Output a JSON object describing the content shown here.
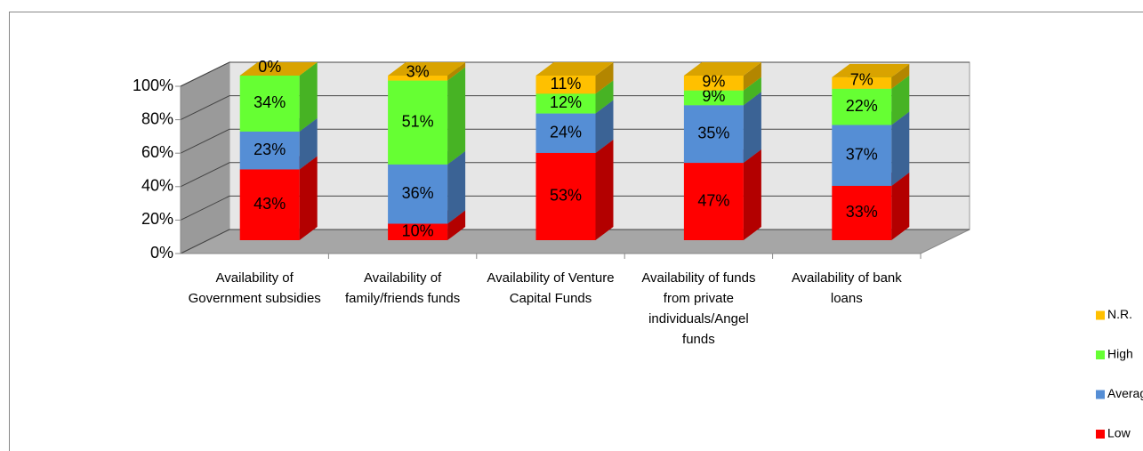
{
  "chart_data": {
    "type": "bar3d_stacked",
    "categories": [
      "Availability of Government subsidies",
      "Availability of family/friends funds",
      "Availability of Venture Capital Funds",
      "Availability of funds from private individuals/Angel funds",
      "Availability of bank loans"
    ],
    "series": [
      {
        "name": "Low",
        "color": "#ff0000",
        "values": [
          43,
          10,
          53,
          47,
          33
        ],
        "value_labels": [
          "43%",
          "10%",
          "53%",
          "47%",
          "33%"
        ]
      },
      {
        "name": "Average",
        "color": "#558ed5",
        "values": [
          23,
          36,
          24,
          35,
          37
        ],
        "value_labels": [
          "23%",
          "36%",
          "24%",
          "35%",
          "37%"
        ]
      },
      {
        "name": "High",
        "color": "#66ff33",
        "values": [
          34,
          51,
          12,
          9,
          22
        ],
        "value_labels": [
          "34%",
          "51%",
          "12%",
          "9%",
          "22%"
        ]
      },
      {
        "name": "N.R.",
        "color": "#ffc000",
        "values": [
          0,
          3,
          11,
          9,
          7
        ],
        "value_labels": [
          "0%",
          "3%",
          "11%",
          "9%",
          "7%"
        ]
      }
    ],
    "ylim": [
      0,
      100
    ],
    "yticks": [
      {
        "value": 0,
        "label": "0%"
      },
      {
        "value": 20,
        "label": "20%"
      },
      {
        "value": 40,
        "label": "40%"
      },
      {
        "value": 60,
        "label": "60%"
      },
      {
        "value": 80,
        "label": "80%"
      },
      {
        "value": 100,
        "label": "100%"
      }
    ],
    "grid": true,
    "legend": "right"
  }
}
